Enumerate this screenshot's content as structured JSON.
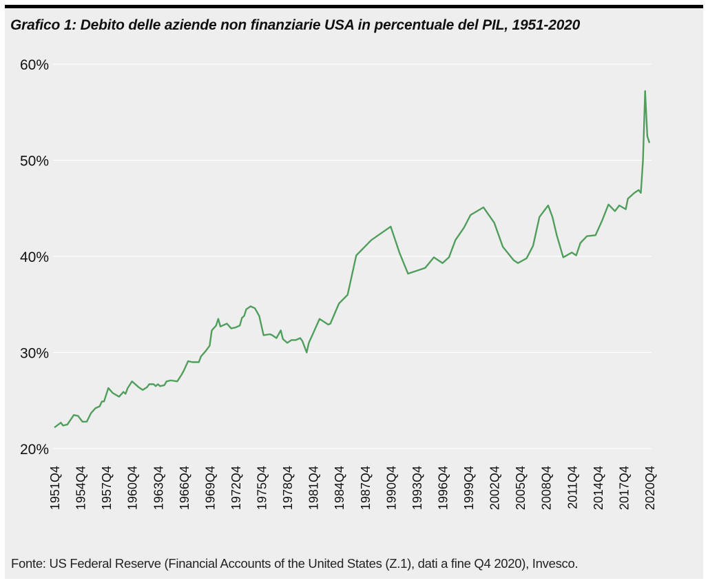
{
  "chart_data": {
    "type": "line",
    "title": "Grafico 1: Debito delle aziende non finanziarie USA in percentuale del PIL, 1951-2020",
    "source": "Fonte: US Federal Reserve (Financial Accounts of the United States (Z.1), dati a fine Q4 2020), Invesco.",
    "xlabel": "",
    "ylabel": "",
    "ylim": [
      20,
      60
    ],
    "xlim": [
      1951.75,
      2020.75
    ],
    "grid": true,
    "y_ticks": [
      {
        "value": 20,
        "label": "20%"
      },
      {
        "value": 30,
        "label": "30%"
      },
      {
        "value": 40,
        "label": "40%"
      },
      {
        "value": 50,
        "label": "50%"
      },
      {
        "value": 60,
        "label": "60%"
      }
    ],
    "x_ticks": [
      {
        "value": 1951.75,
        "label": "1951Q4"
      },
      {
        "value": 1954.75,
        "label": "1954Q4"
      },
      {
        "value": 1957.75,
        "label": "1957Q4"
      },
      {
        "value": 1960.75,
        "label": "1960Q4"
      },
      {
        "value": 1963.75,
        "label": "1963Q4"
      },
      {
        "value": 1966.75,
        "label": "1966Q4"
      },
      {
        "value": 1969.75,
        "label": "1969Q4"
      },
      {
        "value": 1972.75,
        "label": "1972Q4"
      },
      {
        "value": 1975.75,
        "label": "1975Q4"
      },
      {
        "value": 1978.75,
        "label": "1978Q4"
      },
      {
        "value": 1981.75,
        "label": "1981Q4"
      },
      {
        "value": 1984.75,
        "label": "1984Q4"
      },
      {
        "value": 1987.75,
        "label": "1987Q4"
      },
      {
        "value": 1990.75,
        "label": "1990Q4"
      },
      {
        "value": 1993.75,
        "label": "1993Q4"
      },
      {
        "value": 1996.75,
        "label": "1996Q4"
      },
      {
        "value": 1999.75,
        "label": "1999Q4"
      },
      {
        "value": 2002.75,
        "label": "2002Q4"
      },
      {
        "value": 2005.75,
        "label": "2005Q4"
      },
      {
        "value": 2008.75,
        "label": "2008Q4"
      },
      {
        "value": 2011.75,
        "label": "2011Q4"
      },
      {
        "value": 2014.75,
        "label": "2014Q4"
      },
      {
        "value": 2017.75,
        "label": "2017Q4"
      },
      {
        "value": 2020.75,
        "label": "2020Q4"
      }
    ],
    "series": [
      {
        "name": "Debito aziende non finanziarie / PIL (%)",
        "color": "#4f9e5c",
        "points": [
          [
            1951.75,
            22.2
          ],
          [
            1952.5,
            22.7
          ],
          [
            1952.75,
            22.4
          ],
          [
            1953.25,
            22.5
          ],
          [
            1954.0,
            23.5
          ],
          [
            1954.5,
            23.4
          ],
          [
            1955.0,
            22.8
          ],
          [
            1955.5,
            22.8
          ],
          [
            1956.0,
            23.7
          ],
          [
            1956.5,
            24.2
          ],
          [
            1957.0,
            24.4
          ],
          [
            1957.25,
            24.9
          ],
          [
            1957.5,
            24.9
          ],
          [
            1958.0,
            26.3
          ],
          [
            1958.5,
            25.8
          ],
          [
            1959.25,
            25.4
          ],
          [
            1959.75,
            25.9
          ],
          [
            1960.0,
            25.7
          ],
          [
            1960.25,
            26.3
          ],
          [
            1960.75,
            27.0
          ],
          [
            1961.5,
            26.4
          ],
          [
            1962.0,
            26.1
          ],
          [
            1962.5,
            26.4
          ],
          [
            1962.75,
            26.7
          ],
          [
            1963.25,
            26.7
          ],
          [
            1963.5,
            26.5
          ],
          [
            1963.75,
            26.7
          ],
          [
            1964.0,
            26.5
          ],
          [
            1964.5,
            26.6
          ],
          [
            1964.75,
            27.0
          ],
          [
            1965.25,
            27.1
          ],
          [
            1966.0,
            27.0
          ],
          [
            1966.5,
            27.7
          ],
          [
            1966.75,
            28.1
          ],
          [
            1967.25,
            29.1
          ],
          [
            1967.75,
            29.0
          ],
          [
            1968.5,
            29.0
          ],
          [
            1968.75,
            29.6
          ],
          [
            1969.25,
            30.1
          ],
          [
            1969.75,
            30.7
          ],
          [
            1970.0,
            32.3
          ],
          [
            1970.5,
            32.8
          ],
          [
            1970.75,
            33.5
          ],
          [
            1971.0,
            32.7
          ],
          [
            1971.75,
            33.0
          ],
          [
            1972.25,
            32.5
          ],
          [
            1972.75,
            32.6
          ],
          [
            1973.25,
            32.8
          ],
          [
            1973.5,
            33.6
          ],
          [
            1973.75,
            33.8
          ],
          [
            1974.0,
            34.5
          ],
          [
            1974.5,
            34.8
          ],
          [
            1975.0,
            34.6
          ],
          [
            1975.5,
            33.8
          ],
          [
            1976.0,
            31.8
          ],
          [
            1976.75,
            31.9
          ],
          [
            1977.0,
            31.8
          ],
          [
            1977.5,
            31.5
          ],
          [
            1978.0,
            32.3
          ],
          [
            1978.25,
            31.4
          ],
          [
            1978.75,
            31.0
          ],
          [
            1979.25,
            31.3
          ],
          [
            1979.75,
            31.3
          ],
          [
            1980.25,
            31.5
          ],
          [
            1980.5,
            31.2
          ],
          [
            1981.0,
            30.0
          ],
          [
            1981.25,
            31.0
          ],
          [
            1981.75,
            32.0
          ],
          [
            1982.5,
            33.5
          ],
          [
            1983.0,
            33.2
          ],
          [
            1983.5,
            32.9
          ],
          [
            1983.75,
            33.0
          ],
          [
            1984.75,
            35.1
          ],
          [
            1985.75,
            36.0
          ],
          [
            1986.75,
            40.1
          ],
          [
            1988.5,
            41.7
          ],
          [
            1990.75,
            43.1
          ],
          [
            1991.75,
            40.4
          ],
          [
            1992.75,
            38.2
          ],
          [
            1994.75,
            38.8
          ],
          [
            1995.75,
            39.9
          ],
          [
            1996.75,
            39.3
          ],
          [
            1997.5,
            39.9
          ],
          [
            1998.25,
            41.7
          ],
          [
            1999.25,
            43.0
          ],
          [
            2000.0,
            44.3
          ],
          [
            2001.5,
            45.1
          ],
          [
            2002.75,
            43.5
          ],
          [
            2003.75,
            41.0
          ],
          [
            2005.0,
            39.6
          ],
          [
            2005.5,
            39.3
          ],
          [
            2006.5,
            39.8
          ],
          [
            2007.25,
            41.1
          ],
          [
            2008.0,
            44.1
          ],
          [
            2009.0,
            45.3
          ],
          [
            2009.5,
            44.1
          ],
          [
            2010.0,
            42.2
          ],
          [
            2010.75,
            39.9
          ],
          [
            2011.75,
            40.4
          ],
          [
            2012.25,
            40.1
          ],
          [
            2012.75,
            41.4
          ],
          [
            2013.5,
            42.1
          ],
          [
            2014.5,
            42.2
          ],
          [
            2015.25,
            43.7
          ],
          [
            2016.0,
            45.4
          ],
          [
            2016.75,
            44.7
          ],
          [
            2017.25,
            45.3
          ],
          [
            2018.0,
            44.9
          ],
          [
            2018.25,
            46.0
          ],
          [
            2019.0,
            46.6
          ],
          [
            2019.5,
            46.9
          ],
          [
            2019.75,
            46.6
          ],
          [
            2020.0,
            50.0
          ],
          [
            2020.25,
            57.2
          ],
          [
            2020.5,
            52.5
          ],
          [
            2020.75,
            51.8
          ]
        ]
      }
    ]
  }
}
